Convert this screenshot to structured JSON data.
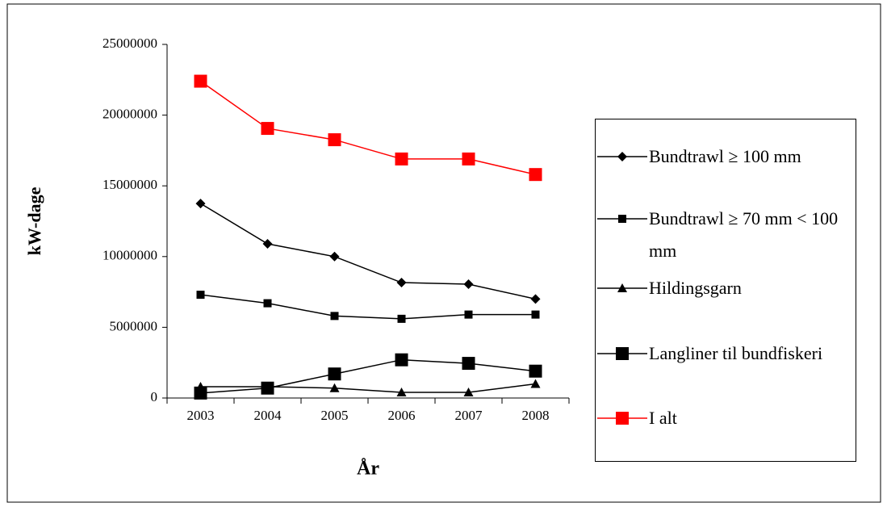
{
  "chart_data": {
    "type": "line",
    "y_label": "kW-dage",
    "x_label": "År",
    "categories": [
      "2003",
      "2004",
      "2005",
      "2006",
      "2007",
      "2008"
    ],
    "ylim": [
      0,
      25000000
    ],
    "yticks": [
      0,
      5000000,
      10000000,
      15000000,
      20000000,
      25000000
    ],
    "series": [
      {
        "name": "Bundtrawl ≥ 100 mm",
        "color": "#000000",
        "marker": "diamond",
        "values": [
          13750000,
          10900000,
          10000000,
          8160000,
          8050000,
          7000000
        ]
      },
      {
        "name": "Bundtrawl ≥ 70 mm < 100 mm",
        "color": "#000000",
        "marker": "square",
        "values": [
          7300000,
          6700000,
          5800000,
          5600000,
          5900000,
          5900000
        ]
      },
      {
        "name": "Hildingsgarn",
        "color": "#000000",
        "marker": "triangle",
        "values": [
          800000,
          800000,
          700000,
          400000,
          400000,
          1000000
        ]
      },
      {
        "name": "Langliner til bundfiskeri",
        "color": "#000000",
        "marker": "big-square",
        "values": [
          350000,
          700000,
          1700000,
          2700000,
          2450000,
          1900000
        ]
      },
      {
        "name": "I alt",
        "color": "#ff0000",
        "marker": "big-square",
        "values": [
          22400000,
          19060000,
          18260000,
          16900000,
          16900000,
          15800000
        ]
      }
    ]
  }
}
